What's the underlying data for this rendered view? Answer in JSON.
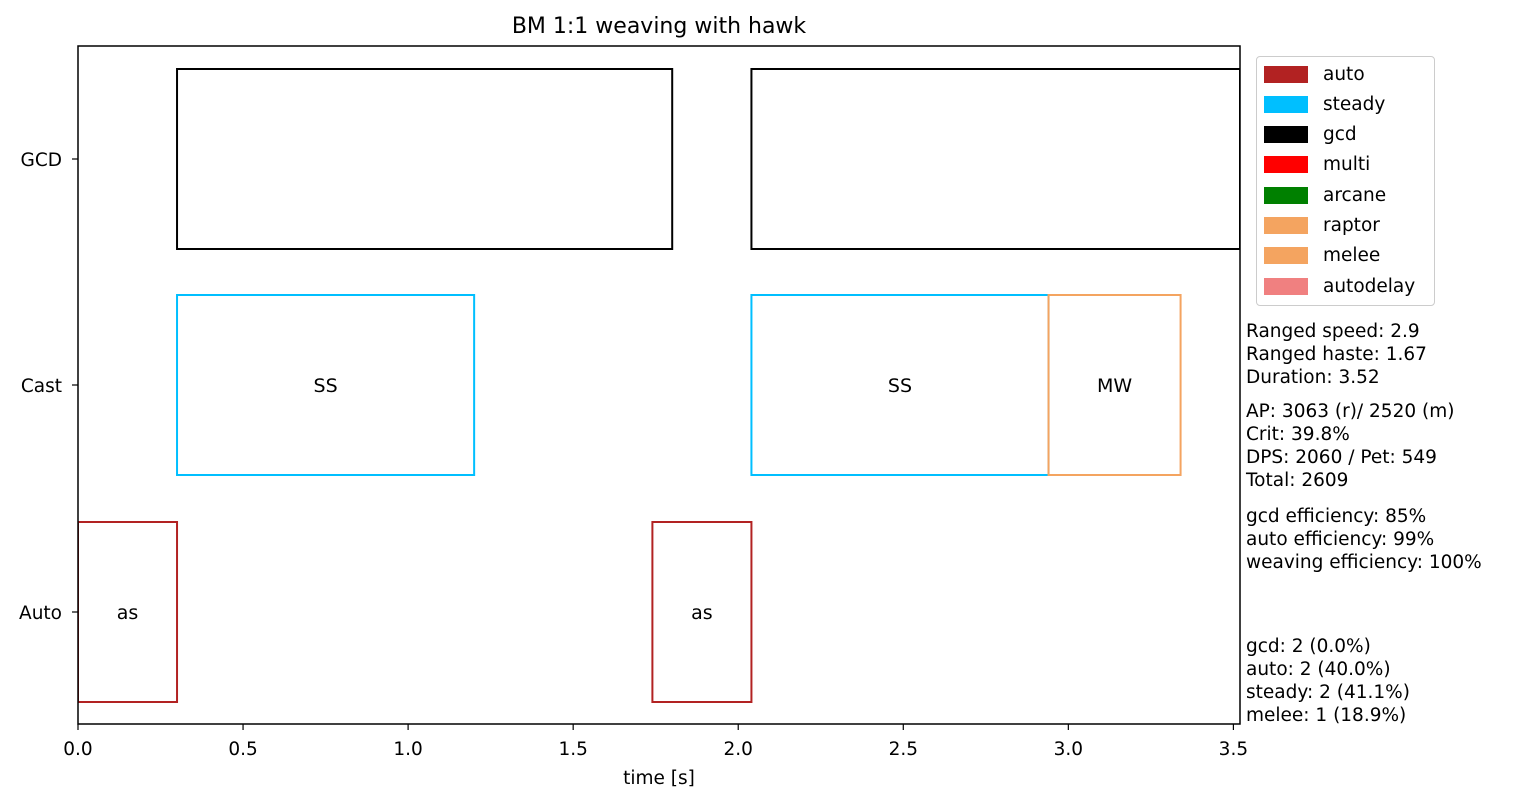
{
  "chart_data": {
    "type": "timeline",
    "title": "BM 1:1 weaving with hawk",
    "xlabel": "time [s]",
    "xlim": [
      0,
      3.52
    ],
    "x_ticks": [
      "0.0",
      "0.5",
      "1.0",
      "1.5",
      "2.0",
      "2.5",
      "3.0",
      "3.5"
    ],
    "rows": [
      "GCD",
      "Cast",
      "Auto"
    ],
    "bars": [
      {
        "row": "GCD",
        "start": 0.3,
        "end": 1.8,
        "color": "#000000",
        "label": ""
      },
      {
        "row": "GCD",
        "start": 2.04,
        "end": 3.52,
        "color": "#000000",
        "label": ""
      },
      {
        "row": "Cast",
        "start": 0.3,
        "end": 1.2,
        "color": "#00bfff",
        "label": "SS"
      },
      {
        "row": "Cast",
        "start": 2.04,
        "end": 2.94,
        "color": "#00bfff",
        "label": "SS"
      },
      {
        "row": "Cast",
        "start": 2.94,
        "end": 3.34,
        "color": "#f4a460",
        "label": "MW"
      },
      {
        "row": "Auto",
        "start": 0.0,
        "end": 0.3,
        "color": "#b22222",
        "label": "as"
      },
      {
        "row": "Auto",
        "start": 1.74,
        "end": 2.04,
        "color": "#b22222",
        "label": "as"
      }
    ],
    "legend": [
      {
        "label": "auto",
        "color": "#b22222"
      },
      {
        "label": "steady",
        "color": "#00bfff"
      },
      {
        "label": "gcd",
        "color": "#000000"
      },
      {
        "label": "multi",
        "color": "#ff0000"
      },
      {
        "label": "arcane",
        "color": "#008000"
      },
      {
        "label": "raptor",
        "color": "#f4a460"
      },
      {
        "label": "melee",
        "color": "#f4a460"
      },
      {
        "label": "autodelay",
        "color": "#f08080"
      }
    ],
    "legend_position": "upper-right outside",
    "stats_block_1": "Ranged speed: 2.9\nRanged haste: 1.67\nDuration: 3.52",
    "stats_block_2": "AP: 3063 (r)/ 2520 (m)\nCrit: 39.8%\nDPS: 2060 / Pet: 549\nTotal: 2609",
    "stats_block_3": "gcd efficiency: 85%\nauto efficiency: 99%\nweaving efficiency: 100%",
    "stats_block_4": "gcd: 2 (0.0%)\nauto: 2 (40.0%)\nsteady: 2 (41.1%)\nmelee: 1 (18.9%)"
  }
}
